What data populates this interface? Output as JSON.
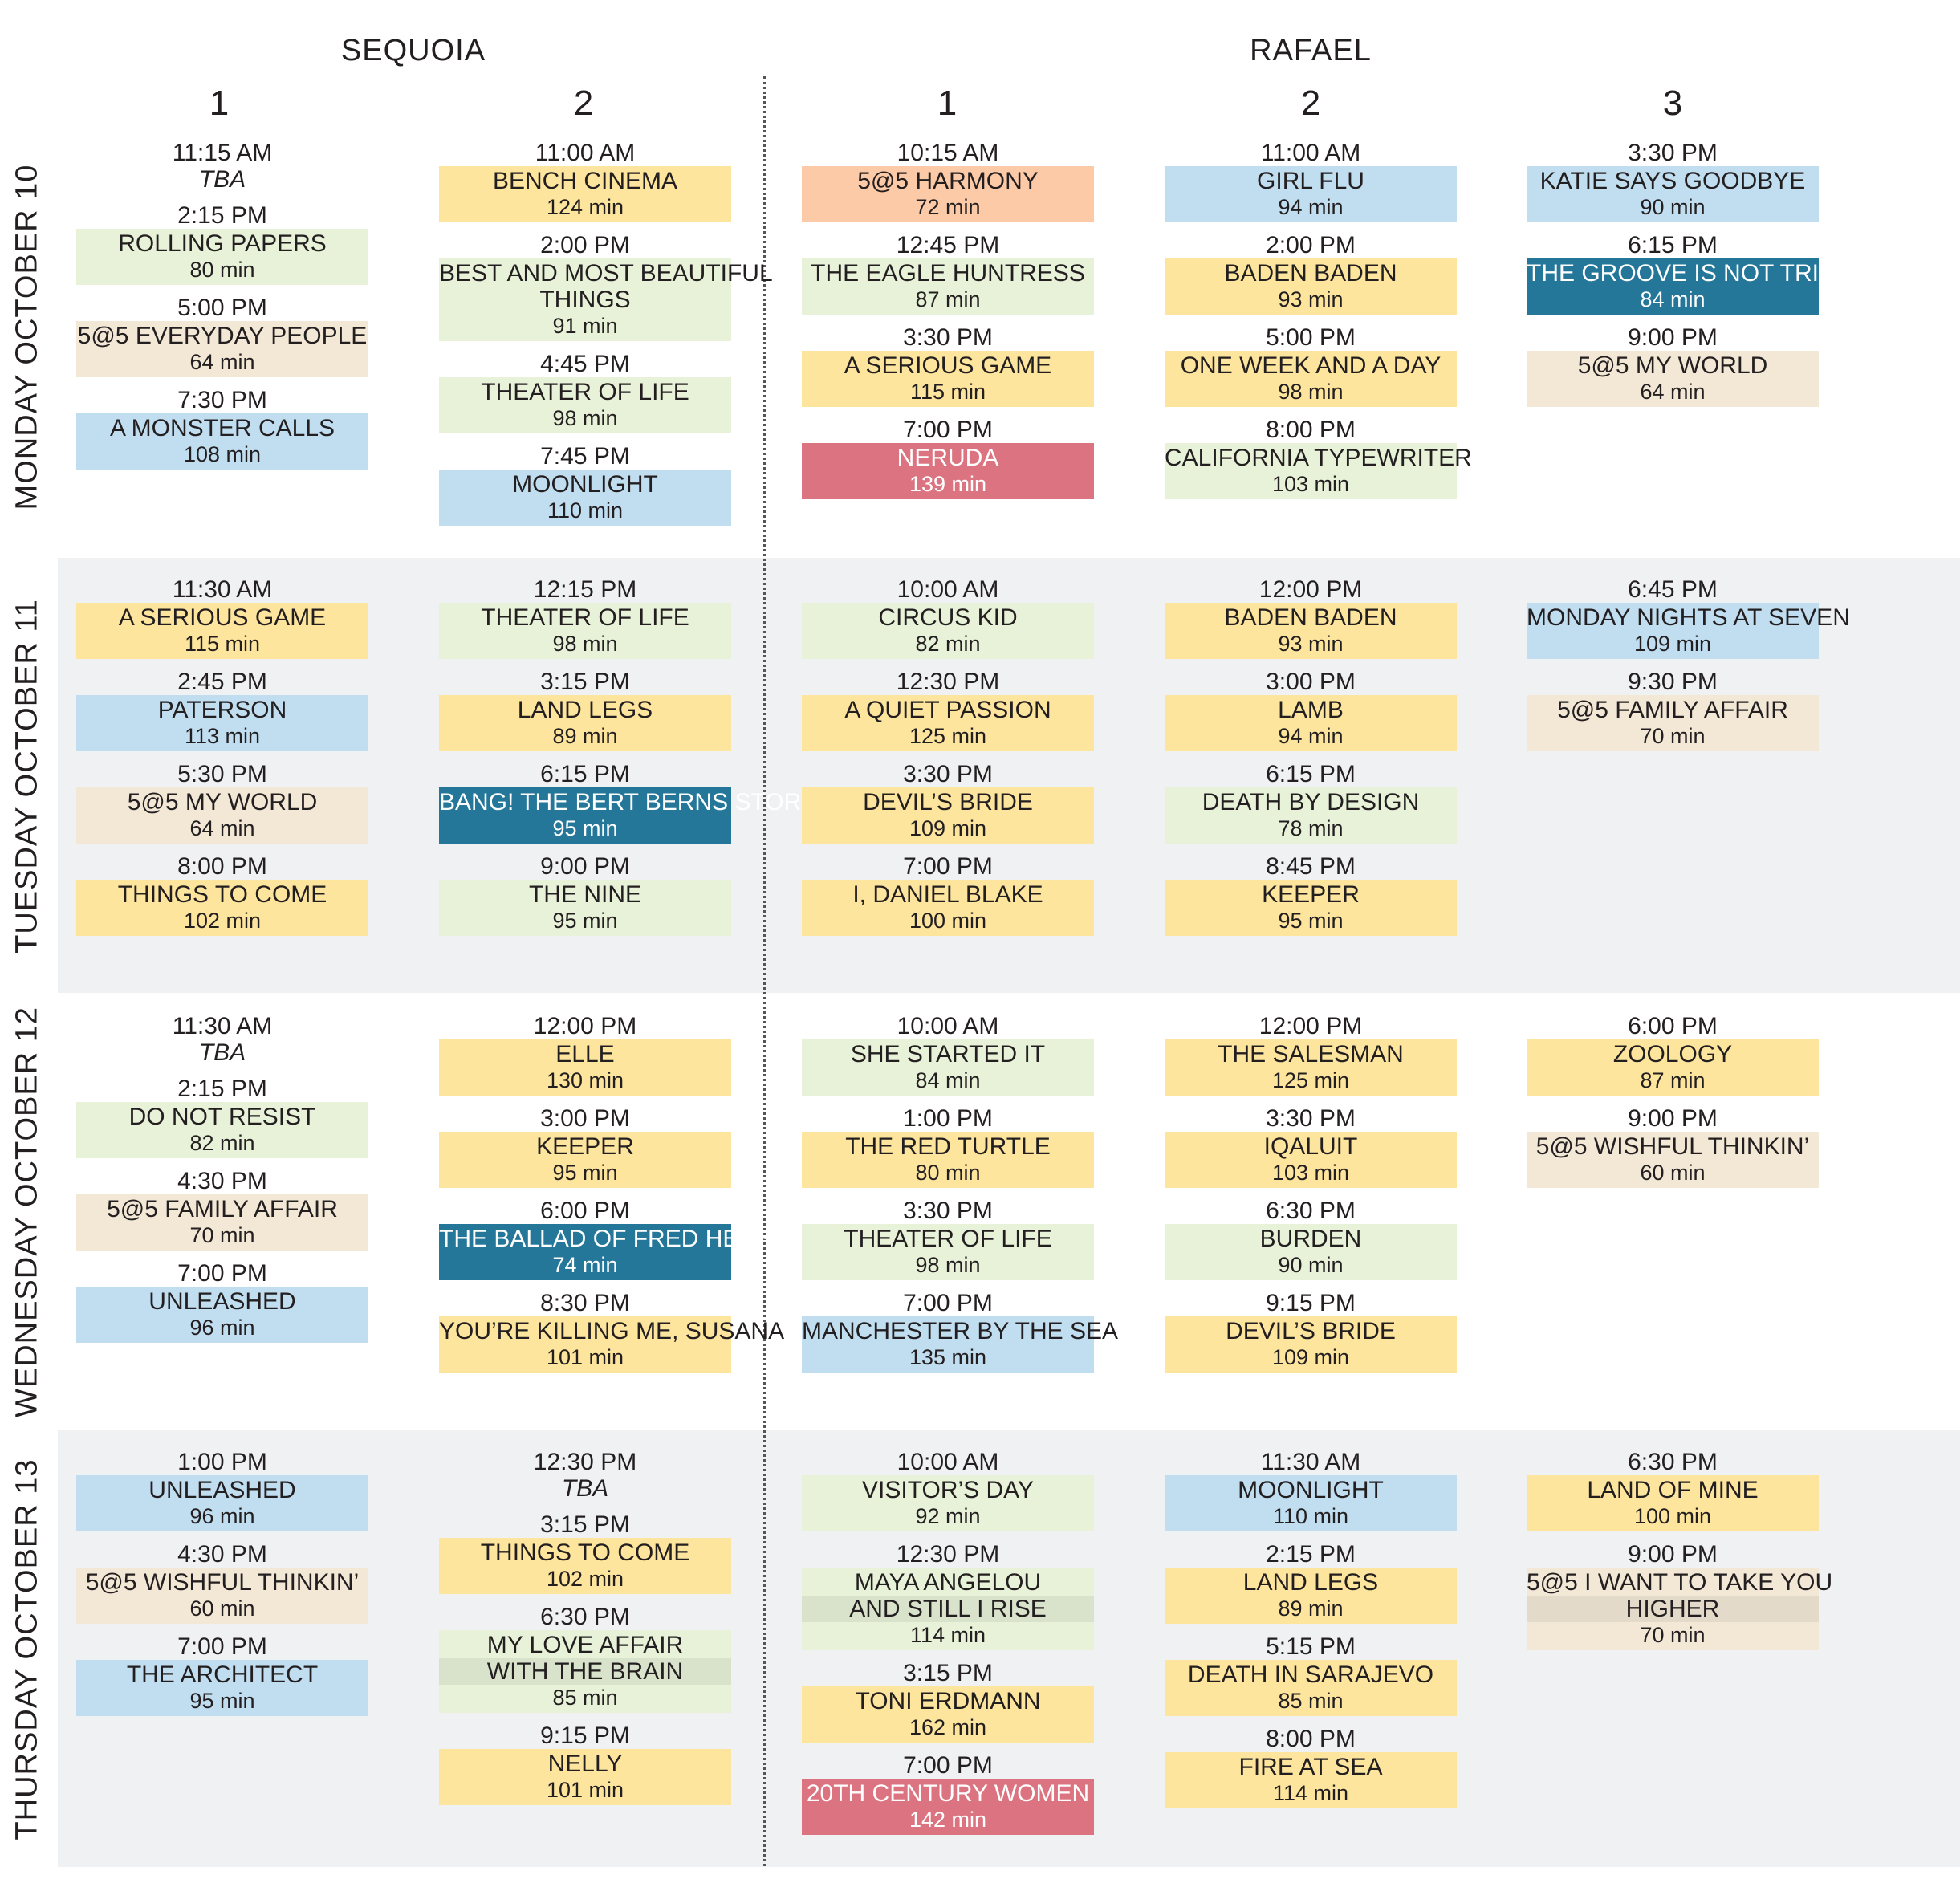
{
  "venues": [
    "SEQUOIA",
    "RAFAEL"
  ],
  "screens": [
    "1",
    "2",
    "1",
    "2",
    "3"
  ],
  "days": [
    {
      "label": "MONDAY  OCTOBER 10",
      "columns": [
        [
          {
            "time": "11:15 AM",
            "tba": "TBA"
          },
          {
            "time": "2:15 PM",
            "title": [
              "ROLLING PAPERS"
            ],
            "duration": "80 min",
            "color": "green"
          },
          {
            "time": "5:00 PM",
            "title": [
              "5@5 EVERYDAY PEOPLE"
            ],
            "duration": "64 min",
            "color": "tan"
          },
          {
            "time": "7:30 PM",
            "title": [
              "A MONSTER CALLS"
            ],
            "duration": "108 min",
            "color": "blue"
          }
        ],
        [
          {
            "time": "11:00 AM",
            "title": [
              "BENCH CINEMA"
            ],
            "duration": "124 min",
            "color": "yellow"
          },
          {
            "time": "2:00 PM",
            "title": [
              "BEST AND MOST BEAUTIFUL",
              "THINGS"
            ],
            "duration": "91 min",
            "color": "green"
          },
          {
            "time": "4:45 PM",
            "title": [
              "THEATER OF LIFE"
            ],
            "duration": "98 min",
            "color": "green"
          },
          {
            "time": "7:45 PM",
            "title": [
              "MOONLIGHT"
            ],
            "duration": "110 min",
            "color": "blue"
          }
        ],
        [
          {
            "time": "10:15 AM",
            "title": [
              "5@5 HARMONY"
            ],
            "duration": "72 min",
            "color": "peach"
          },
          {
            "time": "12:45 PM",
            "title": [
              "THE EAGLE HUNTRESS"
            ],
            "duration": "87 min",
            "color": "green"
          },
          {
            "time": "3:30 PM",
            "title": [
              "A SERIOUS GAME"
            ],
            "duration": "115 min",
            "color": "yellow"
          },
          {
            "time": "7:00 PM",
            "title": [
              "NERUDA"
            ],
            "duration": "139 min",
            "color": "red"
          }
        ],
        [
          {
            "time": "11:00 AM",
            "title": [
              "GIRL FLU"
            ],
            "duration": "94 min",
            "color": "blue"
          },
          {
            "time": "2:00 PM",
            "title": [
              "BADEN BADEN"
            ],
            "duration": "93 min",
            "color": "yellow"
          },
          {
            "time": "5:00 PM",
            "title": [
              "ONE WEEK AND A DAY"
            ],
            "duration": "98 min",
            "color": "yellow"
          },
          {
            "time": "8:00 PM",
            "title": [
              "CALIFORNIA TYPEWRITER"
            ],
            "duration": "103 min",
            "color": "green"
          }
        ],
        [
          {
            "time": "3:30 PM",
            "title": [
              "KATIE SAYS GOODBYE"
            ],
            "duration": "90 min",
            "color": "blue"
          },
          {
            "time": "6:15 PM",
            "title": [
              "THE GROOVE IS NOT TRIVIAL"
            ],
            "duration": "84 min",
            "color": "teal"
          },
          {
            "time": "9:00 PM",
            "title": [
              "5@5 MY WORLD"
            ],
            "duration": "64 min",
            "color": "tan"
          }
        ]
      ]
    },
    {
      "label": "TUESDAY  OCTOBER 11",
      "columns": [
        [
          {
            "time": "11:30 AM",
            "title": [
              "A SERIOUS GAME"
            ],
            "duration": "115 min",
            "color": "yellow"
          },
          {
            "time": "2:45 PM",
            "title": [
              "PATERSON"
            ],
            "duration": "113 min",
            "color": "blue"
          },
          {
            "time": "5:30 PM",
            "title": [
              "5@5 MY WORLD"
            ],
            "duration": "64 min",
            "color": "tan"
          },
          {
            "time": "8:00 PM",
            "title": [
              "THINGS TO COME"
            ],
            "duration": "102 min",
            "color": "yellow"
          }
        ],
        [
          {
            "time": "12:15 PM",
            "title": [
              "THEATER OF LIFE"
            ],
            "duration": "98 min",
            "color": "green"
          },
          {
            "time": "3:15 PM",
            "title": [
              "LAND LEGS"
            ],
            "duration": "89 min",
            "color": "yellow"
          },
          {
            "time": "6:15 PM",
            "title": [
              "BANG! THE BERT BERNS STORY"
            ],
            "duration": "95 min",
            "color": "teal"
          },
          {
            "time": "9:00 PM",
            "title": [
              "THE NINE"
            ],
            "duration": "95 min",
            "color": "green"
          }
        ],
        [
          {
            "time": "10:00 AM",
            "title": [
              "CIRCUS KID"
            ],
            "duration": "82 min",
            "color": "green"
          },
          {
            "time": "12:30 PM",
            "title": [
              "A QUIET PASSION"
            ],
            "duration": "125 min",
            "color": "yellow"
          },
          {
            "time": "3:30 PM",
            "title": [
              "DEVIL’S BRIDE"
            ],
            "duration": "109 min",
            "color": "yellow"
          },
          {
            "time": "7:00 PM",
            "title": [
              "I, DANIEL BLAKE"
            ],
            "duration": "100 min",
            "color": "yellow"
          }
        ],
        [
          {
            "time": "12:00 PM",
            "title": [
              "BADEN BADEN"
            ],
            "duration": "93 min",
            "color": "yellow"
          },
          {
            "time": "3:00 PM",
            "title": [
              "LAMB"
            ],
            "duration": "94 min",
            "color": "yellow"
          },
          {
            "time": "6:15 PM",
            "title": [
              "DEATH BY DESIGN"
            ],
            "duration": "78 min",
            "color": "green"
          },
          {
            "time": "8:45 PM",
            "title": [
              "KEEPER"
            ],
            "duration": "95 min",
            "color": "yellow"
          }
        ],
        [
          {
            "time": "6:45 PM",
            "title": [
              "MONDAY NIGHTS AT SEVEN"
            ],
            "duration": "109 min",
            "color": "blue"
          },
          {
            "time": "9:30 PM",
            "title": [
              "5@5 FAMILY AFFAIR"
            ],
            "duration": "70 min",
            "color": "tan"
          }
        ]
      ]
    },
    {
      "label": "WEDNESDAY  OCTOBER 12",
      "columns": [
        [
          {
            "time": "11:30 AM",
            "tba": "TBA"
          },
          {
            "time": "2:15 PM",
            "title": [
              "DO NOT RESIST"
            ],
            "duration": "82 min",
            "color": "green"
          },
          {
            "time": "4:30 PM",
            "title": [
              "5@5 FAMILY AFFAIR"
            ],
            "duration": "70 min",
            "color": "tan"
          },
          {
            "time": "7:00 PM",
            "title": [
              "UNLEASHED"
            ],
            "duration": "96 min",
            "color": "blue"
          }
        ],
        [
          {
            "time": "12:00 PM",
            "title": [
              "ELLE"
            ],
            "duration": "130 min",
            "color": "yellow"
          },
          {
            "time": "3:00 PM",
            "title": [
              "KEEPER"
            ],
            "duration": "95 min",
            "color": "yellow"
          },
          {
            "time": "6:00 PM",
            "title": [
              "THE BALLAD OF FRED HERSCH"
            ],
            "duration": "74 min",
            "color": "teal"
          },
          {
            "time": "8:30 PM",
            "title": [
              "YOU’RE KILLING ME, SUSANA"
            ],
            "duration": "101 min",
            "color": "yellow"
          }
        ],
        [
          {
            "time": "10:00 AM",
            "title": [
              "SHE STARTED IT"
            ],
            "duration": "84 min",
            "color": "green"
          },
          {
            "time": "1:00 PM",
            "title": [
              "THE RED TURTLE"
            ],
            "duration": "80 min",
            "color": "yellow"
          },
          {
            "time": "3:30 PM",
            "title": [
              "THEATER OF LIFE"
            ],
            "duration": "98 min",
            "color": "green"
          },
          {
            "time": "7:00 PM",
            "title": [
              "MANCHESTER BY THE SEA"
            ],
            "duration": "135 min",
            "color": "blue"
          }
        ],
        [
          {
            "time": "12:00 PM",
            "title": [
              "THE SALESMAN"
            ],
            "duration": "125 min",
            "color": "yellow"
          },
          {
            "time": "3:30 PM",
            "title": [
              "IQALUIT"
            ],
            "duration": "103 min",
            "color": "yellow"
          },
          {
            "time": "6:30 PM",
            "title": [
              "BURDEN"
            ],
            "duration": "90 min",
            "color": "green"
          },
          {
            "time": "9:15 PM",
            "title": [
              "DEVIL’S BRIDE"
            ],
            "duration": "109 min",
            "color": "yellow"
          }
        ],
        [
          {
            "time": "6:00 PM",
            "title": [
              "ZOOLOGY"
            ],
            "duration": "87 min",
            "color": "yellow"
          },
          {
            "time": "9:00 PM",
            "title": [
              "5@5 WISHFUL THINKIN’"
            ],
            "duration": "60 min",
            "color": "tan"
          }
        ]
      ]
    },
    {
      "label": "THURSDAY  OCTOBER 13",
      "columns": [
        [
          {
            "time": "1:00 PM",
            "title": [
              "UNLEASHED"
            ],
            "duration": "96 min",
            "color": "blue"
          },
          {
            "time": "4:30 PM",
            "title": [
              "5@5 WISHFUL THINKIN’"
            ],
            "duration": "60 min",
            "color": "tan"
          },
          {
            "time": "7:00 PM",
            "title": [
              "THE ARCHITECT"
            ],
            "duration": "95 min",
            "color": "blue"
          }
        ],
        [
          {
            "time": "12:30 PM",
            "tba": "TBA"
          },
          {
            "time": "3:15 PM",
            "title": [
              "THINGS TO COME"
            ],
            "duration": "102 min",
            "color": "yellow"
          },
          {
            "time": "6:30 PM",
            "title": [
              "MY LOVE AFFAIR",
              "WITH THE BRAIN"
            ],
            "duration": "85 min",
            "color": "green",
            "stripe": true
          },
          {
            "time": "9:15 PM",
            "title": [
              "NELLY"
            ],
            "duration": "101 min",
            "color": "yellow"
          }
        ],
        [
          {
            "time": "10:00 AM",
            "title": [
              "VISITOR’S DAY"
            ],
            "duration": "92 min",
            "color": "green"
          },
          {
            "time": "12:30 PM",
            "title": [
              "MAYA ANGELOU",
              "AND STILL I RISE"
            ],
            "duration": "114 min",
            "color": "green",
            "stripe": true
          },
          {
            "time": "3:15 PM",
            "title": [
              "TONI ERDMANN"
            ],
            "duration": "162 min",
            "color": "yellow"
          },
          {
            "time": "7:00 PM",
            "title": [
              "20TH CENTURY WOMEN"
            ],
            "duration": "142 min",
            "color": "red"
          }
        ],
        [
          {
            "time": "11:30 AM",
            "title": [
              "MOONLIGHT"
            ],
            "duration": "110 min",
            "color": "blue"
          },
          {
            "time": "2:15 PM",
            "title": [
              "LAND LEGS"
            ],
            "duration": "89 min",
            "color": "yellow"
          },
          {
            "time": "5:15 PM",
            "title": [
              "DEATH IN SARAJEVO"
            ],
            "duration": "85 min",
            "color": "yellow"
          },
          {
            "time": "8:00 PM",
            "title": [
              "FIRE AT SEA"
            ],
            "duration": "114 min",
            "color": "yellow"
          }
        ],
        [
          {
            "time": "6:30 PM",
            "title": [
              "LAND OF MINE"
            ],
            "duration": "100 min",
            "color": "yellow"
          },
          {
            "time": "9:00 PM",
            "title": [
              "5@5 I WANT TO TAKE YOU",
              "HIGHER"
            ],
            "duration": "70 min",
            "color": "tan",
            "stripe": true
          }
        ]
      ]
    }
  ]
}
